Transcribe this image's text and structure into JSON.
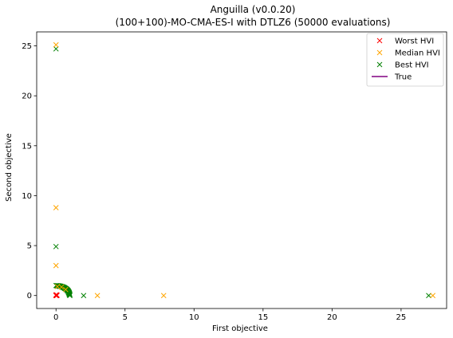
{
  "chart_data": {
    "type": "scatter",
    "title": "Anguilla (v0.0.20)",
    "subtitle": "(100+100)-MO-CMA-ES-I with DTLZ6 (50000 evaluations)",
    "xlabel": "First objective",
    "ylabel": "Second objective",
    "xlim": [
      -1.4,
      28.3
    ],
    "ylim": [
      -1.3,
      26.4
    ],
    "xticks": [
      0,
      5,
      10,
      15,
      20,
      25
    ],
    "yticks": [
      0,
      5,
      10,
      15,
      20,
      25
    ],
    "grid": false,
    "legend_position": "top-right",
    "series": [
      {
        "name": "Worst HVI",
        "marker": "x",
        "color": "#ff0000",
        "points": [
          [
            0.0,
            0.0
          ],
          [
            0.03,
            0.02
          ],
          [
            0.0,
            0.05
          ],
          [
            0.05,
            0.0
          ],
          [
            0.02,
            0.08
          ],
          [
            0.08,
            0.03
          ]
        ]
      },
      {
        "name": "Median HVI",
        "marker": "x",
        "color": "#ffa500",
        "points": [
          [
            0.0,
            25.1
          ],
          [
            0.0,
            8.8
          ],
          [
            0.0,
            3.0
          ],
          [
            3.0,
            0.0
          ],
          [
            7.8,
            0.0
          ],
          [
            27.3,
            0.0
          ],
          [
            0.1,
            0.9
          ],
          [
            0.4,
            0.85
          ],
          [
            0.7,
            0.6
          ]
        ]
      },
      {
        "name": "Best HVI",
        "marker": "x",
        "color": "#008000",
        "points": [
          [
            0.0,
            24.7
          ],
          [
            0.0,
            4.9
          ],
          [
            2.0,
            0.0
          ],
          [
            27.0,
            0.0
          ],
          [
            0.0,
            1.0
          ],
          [
            0.1,
            0.99
          ],
          [
            0.16,
            0.99
          ],
          [
            0.22,
            0.97
          ],
          [
            0.28,
            0.96
          ],
          [
            0.33,
            0.94
          ],
          [
            0.39,
            0.92
          ],
          [
            0.45,
            0.89
          ],
          [
            0.5,
            0.87
          ],
          [
            0.55,
            0.83
          ],
          [
            0.6,
            0.8
          ],
          [
            0.64,
            0.77
          ],
          [
            0.69,
            0.72
          ],
          [
            0.73,
            0.68
          ],
          [
            0.77,
            0.64
          ],
          [
            0.8,
            0.6
          ],
          [
            0.84,
            0.55
          ],
          [
            0.87,
            0.5
          ],
          [
            0.89,
            0.45
          ],
          [
            0.92,
            0.39
          ],
          [
            0.94,
            0.33
          ],
          [
            0.96,
            0.28
          ],
          [
            0.97,
            0.22
          ],
          [
            0.99,
            0.16
          ],
          [
            0.99,
            0.1
          ],
          [
            1.0,
            0.05
          ],
          [
            1.0,
            0.0
          ],
          [
            0.05,
            0.98
          ],
          [
            0.12,
            0.96
          ],
          [
            0.2,
            0.93
          ],
          [
            0.3,
            0.9
          ],
          [
            0.42,
            0.84
          ],
          [
            0.52,
            0.78
          ],
          [
            0.62,
            0.7
          ],
          [
            0.7,
            0.62
          ],
          [
            0.78,
            0.52
          ],
          [
            0.84,
            0.42
          ],
          [
            0.9,
            0.3
          ],
          [
            0.93,
            0.2
          ],
          [
            0.96,
            0.1
          ]
        ]
      },
      {
        "name": "True",
        "marker": "line",
        "color": "#800080",
        "points": []
      }
    ]
  }
}
